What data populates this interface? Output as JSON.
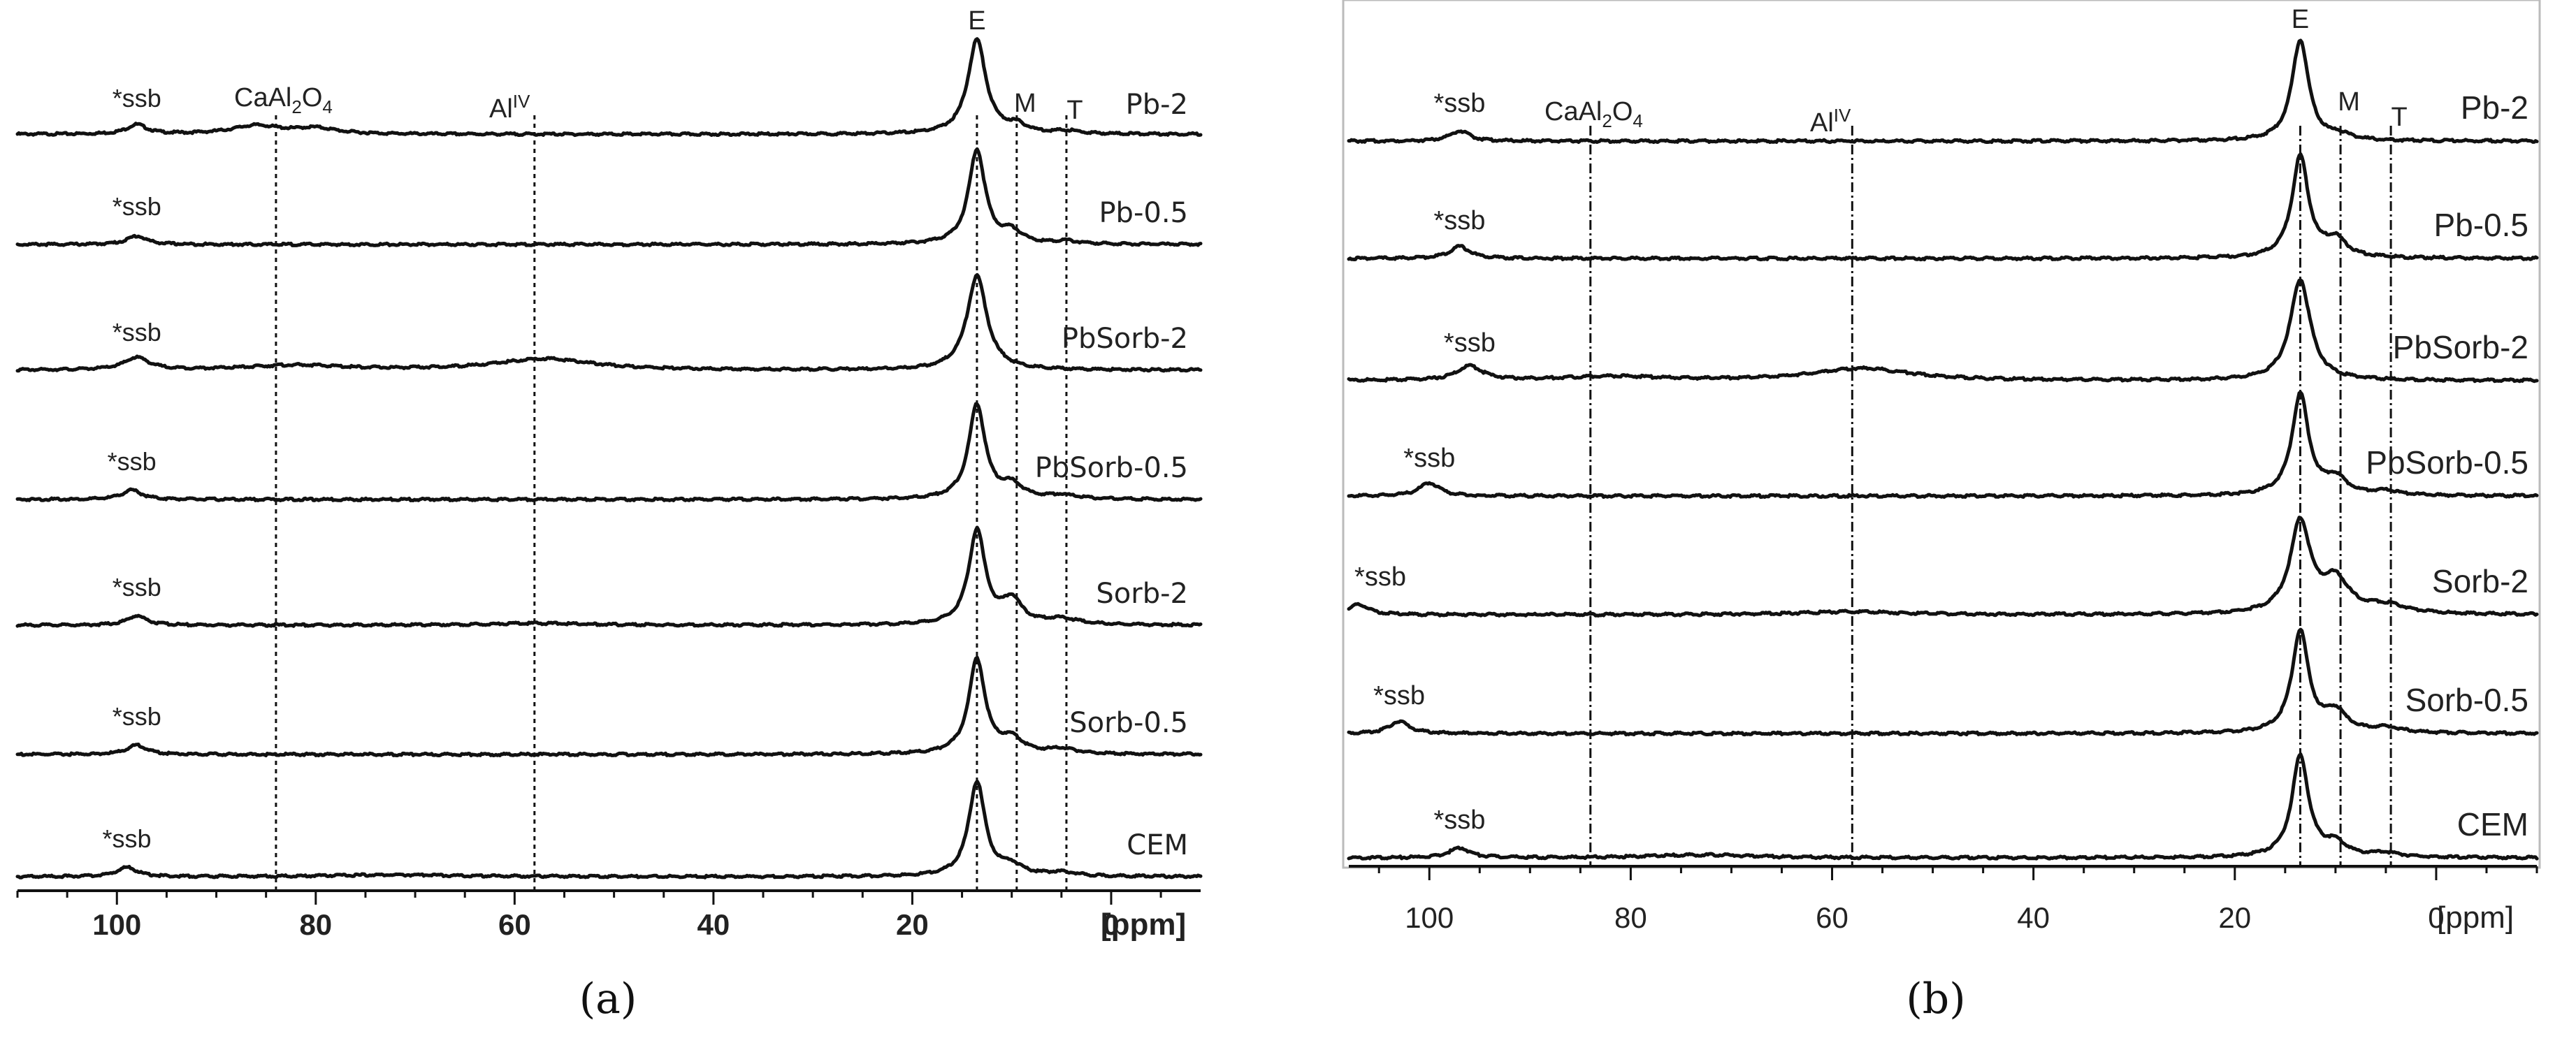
{
  "chart_data": [
    {
      "panel": "a",
      "type": "line",
      "title": "",
      "xlabel": "[ppm]",
      "ylabel": "",
      "xlim": [
        110,
        -9
      ],
      "x_ticks": [
        "100",
        "80",
        "60",
        "40",
        "20",
        "0"
      ],
      "x_tick_values": [
        100,
        80,
        60,
        40,
        20,
        0
      ],
      "caption": "(a)",
      "peak_labels": [
        {
          "text": "E",
          "ppm": 13.5
        },
        {
          "text": "M",
          "ppm": 9.5
        },
        {
          "text": "T",
          "ppm": 4.5
        }
      ],
      "reference_lines_ppm": [
        84,
        58,
        13.5,
        9.5,
        4.5
      ],
      "series": [
        {
          "name": "Pb-2",
          "ssb_label": "*ssb",
          "ssb_ppm": 98,
          "baseline": 0.02,
          "peaks": [
            {
              "ppm": 13.5,
              "height": 1.0,
              "width": 1.1
            },
            {
              "ppm": 9.5,
              "height": 0.08,
              "width": 1.2
            },
            {
              "ppm": 4.5,
              "height": 0.03,
              "width": 1.5
            },
            {
              "ppm": 98,
              "height": 0.1,
              "width": 1.2
            },
            {
              "ppm": 86,
              "height": 0.09,
              "width": 3.0
            },
            {
              "ppm": 80,
              "height": 0.06,
              "width": 2.5
            }
          ]
        },
        {
          "name": "Pb-0.5",
          "ssb_label": "*ssb",
          "ssb_ppm": 98,
          "baseline": 0.0,
          "peaks": [
            {
              "ppm": 13.5,
              "height": 1.0,
              "width": 1.0
            },
            {
              "ppm": 10,
              "height": 0.12,
              "width": 1.2
            },
            {
              "ppm": 4.5,
              "height": 0.03,
              "width": 1.5
            },
            {
              "ppm": 98,
              "height": 0.09,
              "width": 1.2
            }
          ]
        },
        {
          "name": "PbSorb-2",
          "ssb_label": "*ssb",
          "ssb_ppm": 98,
          "baseline": 0.0,
          "peaks": [
            {
              "ppm": 13.5,
              "height": 1.0,
              "width": 1.2
            },
            {
              "ppm": 98,
              "height": 0.13,
              "width": 1.5
            },
            {
              "ppm": 82,
              "height": 0.05,
              "width": 6
            },
            {
              "ppm": 57,
              "height": 0.12,
              "width": 6
            }
          ]
        },
        {
          "name": "PbSorb-0.5",
          "ssb_label": "*ssb",
          "ssb_ppm": 98.5,
          "baseline": 0.0,
          "peaks": [
            {
              "ppm": 13.5,
              "height": 1.0,
              "width": 1.0
            },
            {
              "ppm": 10,
              "height": 0.14,
              "width": 1.3
            },
            {
              "ppm": 5,
              "height": 0.04,
              "width": 1.6
            },
            {
              "ppm": 98.5,
              "height": 0.1,
              "width": 1.2
            }
          ]
        },
        {
          "name": "Sorb-2",
          "ssb_label": "*ssb",
          "ssb_ppm": 98,
          "baseline": 0.0,
          "peaks": [
            {
              "ppm": 13.5,
              "height": 1.0,
              "width": 1.0
            },
            {
              "ppm": 10,
              "height": 0.25,
              "width": 1.2
            },
            {
              "ppm": 5,
              "height": 0.06,
              "width": 2
            },
            {
              "ppm": 98,
              "height": 0.1,
              "width": 1.2
            },
            {
              "ppm": 58,
              "height": 0.02,
              "width": 6
            }
          ]
        },
        {
          "name": "Sorb-0.5",
          "ssb_label": "*ssb",
          "ssb_ppm": 98,
          "baseline": 0.0,
          "peaks": [
            {
              "ppm": 13.5,
              "height": 1.0,
              "width": 1.0
            },
            {
              "ppm": 10,
              "height": 0.15,
              "width": 1.3
            },
            {
              "ppm": 5,
              "height": 0.05,
              "width": 1.8
            },
            {
              "ppm": 98,
              "height": 0.1,
              "width": 1.2
            }
          ]
        },
        {
          "name": "CEM",
          "ssb_label": "*ssb",
          "ssb_ppm": 99,
          "baseline": 0.0,
          "peaks": [
            {
              "ppm": 13.5,
              "height": 1.0,
              "width": 1.0
            },
            {
              "ppm": 10,
              "height": 0.1,
              "width": 1.3
            },
            {
              "ppm": 5,
              "height": 0.04,
              "width": 1.8
            },
            {
              "ppm": 99,
              "height": 0.1,
              "width": 1.2
            },
            {
              "ppm": 72,
              "height": 0.02,
              "width": 8
            }
          ]
        }
      ]
    },
    {
      "panel": "b",
      "type": "line",
      "title": "",
      "xlabel": "[ppm]",
      "ylabel": "",
      "xlim": [
        108,
        -10
      ],
      "x_ticks": [
        "100",
        "80",
        "60",
        "40",
        "20",
        "0"
      ],
      "x_tick_values": [
        100,
        80,
        60,
        40,
        20,
        0
      ],
      "caption": "(b)",
      "peak_labels": [
        {
          "text": "E",
          "ppm": 13.5
        },
        {
          "text": "M",
          "ppm": 9.5
        },
        {
          "text": "T",
          "ppm": 4.5
        }
      ],
      "reference_lines_ppm": [
        84,
        58,
        13.5,
        9.5,
        4.5
      ],
      "series": [
        {
          "name": "Pb-2",
          "ssb_label": "*ssb",
          "ssb_ppm": 97,
          "baseline": 0.0,
          "peaks": [
            {
              "ppm": 13.5,
              "height": 1.0,
              "width": 1.0
            },
            {
              "ppm": 9.5,
              "height": 0.05,
              "width": 1.2
            },
            {
              "ppm": 97,
              "height": 0.1,
              "width": 1.2
            }
          ]
        },
        {
          "name": "Pb-0.5",
          "ssb_label": "*ssb",
          "ssb_ppm": 97,
          "baseline": 0.0,
          "peaks": [
            {
              "ppm": 13.5,
              "height": 1.0,
              "width": 1.0
            },
            {
              "ppm": 10,
              "height": 0.17,
              "width": 1.3
            },
            {
              "ppm": 97,
              "height": 0.12,
              "width": 1.2
            }
          ]
        },
        {
          "name": "PbSorb-2",
          "ssb_label": "*ssb",
          "ssb_ppm": 96,
          "baseline": 0.0,
          "peaks": [
            {
              "ppm": 13.5,
              "height": 1.0,
              "width": 1.2
            },
            {
              "ppm": 96,
              "height": 0.14,
              "width": 1.5
            },
            {
              "ppm": 82,
              "height": 0.04,
              "width": 6
            },
            {
              "ppm": 57,
              "height": 0.12,
              "width": 6
            }
          ]
        },
        {
          "name": "PbSorb-0.5",
          "ssb_label": "*ssb",
          "ssb_ppm": 100,
          "baseline": 0.0,
          "peaks": [
            {
              "ppm": 13.5,
              "height": 1.0,
              "width": 1.0
            },
            {
              "ppm": 10,
              "height": 0.16,
              "width": 1.3
            },
            {
              "ppm": 5,
              "height": 0.04,
              "width": 1.6
            },
            {
              "ppm": 100,
              "height": 0.13,
              "width": 1.2
            }
          ]
        },
        {
          "name": "Sorb-2",
          "ssb_label": "*ssb",
          "ssb_ppm": 107,
          "baseline": 0.0,
          "peaks": [
            {
              "ppm": 13.5,
              "height": 0.9,
              "width": 1.2
            },
            {
              "ppm": 10,
              "height": 0.32,
              "width": 1.6
            },
            {
              "ppm": 5,
              "height": 0.08,
              "width": 2.5
            },
            {
              "ppm": 107,
              "height": 0.1,
              "width": 1.2
            },
            {
              "ppm": 58,
              "height": 0.03,
              "width": 6
            }
          ]
        },
        {
          "name": "Sorb-0.5",
          "ssb_label": "*ssb",
          "ssb_ppm": 103,
          "baseline": 0.0,
          "peaks": [
            {
              "ppm": 13.5,
              "height": 1.0,
              "width": 1.0
            },
            {
              "ppm": 10,
              "height": 0.2,
              "width": 1.3
            },
            {
              "ppm": 5,
              "height": 0.05,
              "width": 1.8
            },
            {
              "ppm": 103,
              "height": 0.12,
              "width": 1.2
            }
          ]
        },
        {
          "name": "CEM",
          "ssb_label": "*ssb",
          "ssb_ppm": 97,
          "baseline": 0.0,
          "peaks": [
            {
              "ppm": 13.5,
              "height": 1.0,
              "width": 1.0
            },
            {
              "ppm": 10,
              "height": 0.13,
              "width": 1.3
            },
            {
              "ppm": 5,
              "height": 0.04,
              "width": 1.8
            },
            {
              "ppm": 97,
              "height": 0.1,
              "width": 1.2
            },
            {
              "ppm": 73,
              "height": 0.03,
              "width": 6
            }
          ]
        }
      ]
    }
  ]
}
